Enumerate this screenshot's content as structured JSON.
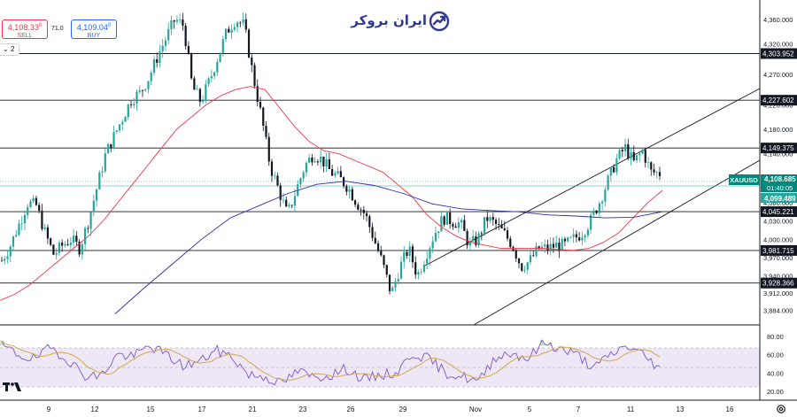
{
  "symbol": "XAUUSD",
  "trade_panel": {
    "sell_price": "4,108.33",
    "sell_sup": "0",
    "sell_label": "SELL",
    "spread": "71.0",
    "buy_price": "4,109.04",
    "buy_sup": "0",
    "buy_label": "BUY",
    "collapse_label": "2"
  },
  "brand": {
    "name": "ایران بروکر"
  },
  "price_axis": {
    "ticks": [
      "4,360.000",
      "4,320.000",
      "4,270.000",
      "4,180.000",
      "4,060.000",
      "4,030.000",
      "4,000.000",
      "3,970.000",
      "3,940.000",
      "3,912.000",
      "3,884.000"
    ],
    "partial_ticks": [
      "4,220.000",
      "4,140.000",
      "4,090.000"
    ]
  },
  "levels": [
    {
      "label": "4,303.952"
    },
    {
      "label": "4,227.602"
    },
    {
      "label": "4,149.375"
    },
    {
      "label": "4,045.221"
    },
    {
      "label": "3,981.715"
    },
    {
      "label": "3,928.366"
    }
  ],
  "current_price": {
    "symbol_label": "XAUUSD",
    "price": "4,108.685",
    "countdown": "01:40:05",
    "ma_value": "4,099.489",
    "color": "#00897b"
  },
  "rsi_axis": {
    "ticks": [
      "80.00",
      "60.00",
      "40.00",
      "20.00"
    ]
  },
  "time_axis": {
    "labels": [
      "9",
      "12",
      "15",
      "17",
      "21",
      "23",
      "26",
      "29",
      "Nov",
      "5",
      "7",
      "11",
      "13",
      "16"
    ]
  },
  "colors": {
    "ma_fast": "#f23645",
    "ma_slow": "#2a2fa8",
    "candle_up": "#26a69a",
    "candle_down": "#131722",
    "rsi_line": "#7e57c2",
    "rsi_signal": "#d4a84b",
    "rsi_band": "#ede7f6",
    "level_line": "#131722",
    "channel_line": "#131722"
  },
  "chart_data": {
    "type": "candlestick",
    "title": "",
    "y_range": [
      3870,
      4380
    ],
    "rsi_range": [
      12,
      88
    ],
    "rsi_levels": [
      70,
      50,
      30
    ],
    "key_levels": [
      4303.952,
      4227.602,
      4149.375,
      4045.221,
      3981.715,
      3928.366
    ],
    "x_labels": [
      "9",
      "12",
      "15",
      "17",
      "21",
      "23",
      "26",
      "29",
      "Nov",
      "5",
      "7",
      "11",
      "13",
      "16"
    ],
    "close_path": [
      3965,
      3990,
      4025,
      4060,
      4055,
      4010,
      3975,
      3990,
      4000,
      3985,
      4030,
      4085,
      4140,
      4170,
      4200,
      4230,
      4240,
      4265,
      4300,
      4330,
      4360,
      4350,
      4250,
      4225,
      4260,
      4300,
      4340,
      4360,
      4350,
      4270,
      4200,
      4120,
      4080,
      4040,
      4080,
      4120,
      4140,
      4130,
      4110,
      4100,
      4085,
      4060,
      4040,
      4000,
      3960,
      3910,
      3955,
      3985,
      3940,
      3975,
      4010,
      4035,
      4030,
      4025,
      3990,
      4000,
      4035,
      4025,
      4010,
      3990,
      3955,
      3965,
      3985,
      3985,
      3990,
      3990,
      4000,
      4010,
      4030,
      4060,
      4095,
      4130,
      4150,
      4125,
      4145,
      4110,
      4108
    ],
    "ma_fast": [
      3900,
      3910,
      3925,
      3945,
      3965,
      3985,
      4005,
      4030,
      4060,
      4090,
      4120,
      4150,
      4180,
      4200,
      4220,
      4235,
      4245,
      4250,
      4245,
      4215,
      4185,
      4160,
      4145,
      4140,
      4130,
      4120,
      4110,
      4090,
      4070,
      4040,
      4020,
      4005,
      3995,
      3990,
      3985,
      3985,
      3985,
      3985,
      3983,
      3982,
      3985,
      3995,
      4010,
      4035,
      4060,
      4080
    ],
    "ma_slow": [
      3878,
      3920,
      3960,
      4000,
      4035,
      4055,
      4075,
      4090,
      4095,
      4088,
      4075,
      4058,
      4050,
      4047,
      4045,
      4040,
      4038,
      4035,
      4036,
      4045
    ],
    "rsi": [
      70,
      60,
      55,
      68,
      55,
      38,
      36,
      60,
      58,
      70,
      60,
      48,
      52,
      65,
      58,
      38,
      36,
      28,
      42,
      35,
      38,
      45,
      32,
      38,
      40,
      62,
      55,
      40,
      36,
      30,
      58,
      62,
      56,
      74,
      66,
      60,
      45,
      60,
      70,
      60,
      45
    ]
  }
}
